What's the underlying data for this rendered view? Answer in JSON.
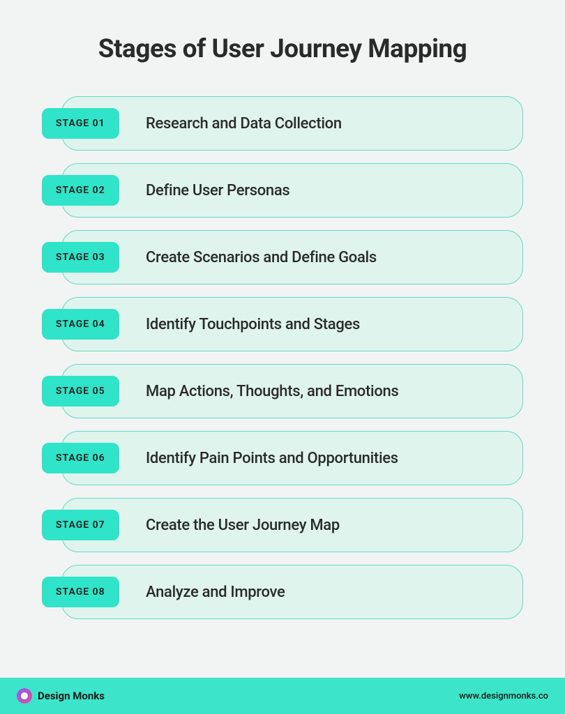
{
  "title": "Stages of User Journey Mapping",
  "type": "infographic",
  "background_color": "#f1f4f3",
  "title_color": "#2a2a2a",
  "title_fontsize": 37,
  "title_fontweight": 700,
  "stage_pill": {
    "background_color": "#dff4ed",
    "border_color": "#68d8c6",
    "border_radius": 24,
    "height": 78
  },
  "stage_badge": {
    "background_color": "#2fe4c8",
    "text_color": "#1a1a1a",
    "fontsize": 14,
    "fontweight": 600,
    "border_radius": 10
  },
  "stage_text": {
    "color": "#2a2a2a",
    "fontsize": 22,
    "fontweight": 500
  },
  "stages": [
    {
      "badge": "STAGE 01",
      "label": "Research and Data Collection"
    },
    {
      "badge": "STAGE 02",
      "label": "Define User Personas"
    },
    {
      "badge": "STAGE 03",
      "label": "Create Scenarios and Define Goals"
    },
    {
      "badge": "STAGE 04",
      "label": "Identify Touchpoints and Stages"
    },
    {
      "badge": "STAGE 05",
      "label": "Map Actions, Thoughts, and Emotions"
    },
    {
      "badge": "STAGE 06",
      "label": "Identify Pain Points and Opportunities"
    },
    {
      "badge": "STAGE 07",
      "label": "Create the User Journey Map"
    },
    {
      "badge": "STAGE 08",
      "label": "Analyze and Improve"
    }
  ],
  "footer": {
    "background_color": "#3ce5c9",
    "brand": "Design Monks",
    "url": "www.designmonks.co",
    "text_color": "#1a1a1a",
    "brand_fontsize": 15,
    "url_fontsize": 13,
    "logo_gradient_start": "#8b5cf6",
    "logo_gradient_end": "#ec4899"
  }
}
